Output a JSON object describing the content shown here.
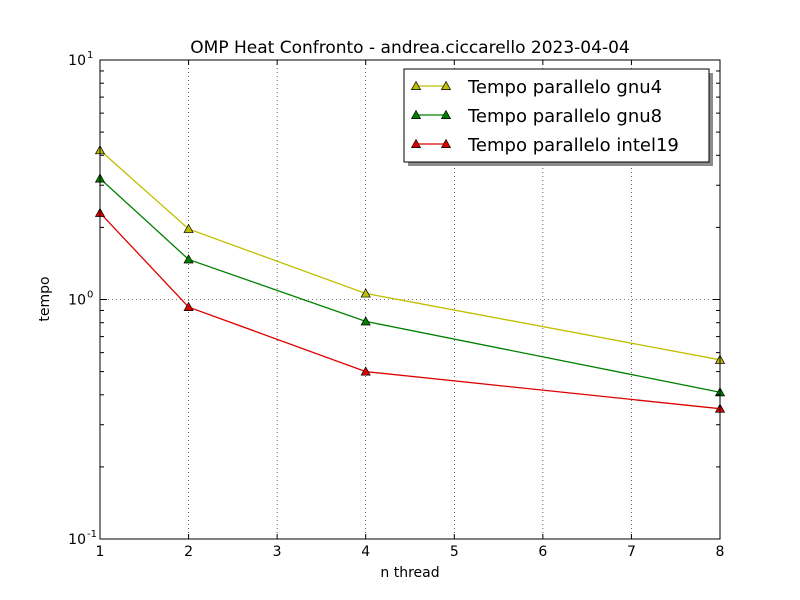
{
  "chart_data": {
    "type": "line",
    "title": "OMP Heat Confronto -  andrea.ciccarello  2023-04-04",
    "xlabel": "n thread",
    "ylabel": "tempo",
    "xlim": [
      1,
      8
    ],
    "ylim": [
      0.1,
      10
    ],
    "yscale": "log",
    "grid": true,
    "legend_position": "top-right",
    "x_ticks": [
      1,
      2,
      3,
      4,
      5,
      6,
      7,
      8
    ],
    "y_ticks": [
      {
        "value": 0.1,
        "base": "10",
        "exp": "-1"
      },
      {
        "value": 1,
        "base": "10",
        "exp": "0"
      },
      {
        "value": 10,
        "base": "10",
        "exp": "1"
      }
    ],
    "series": [
      {
        "name": "Tempo parallelo gnu4",
        "color": "#bfbf00",
        "x": [
          1,
          2,
          4,
          8
        ],
        "y": [
          4.2,
          1.97,
          1.06,
          0.56
        ]
      },
      {
        "name": "Tempo parallelo gnu8",
        "color": "#008000",
        "x": [
          1,
          2,
          4,
          8
        ],
        "y": [
          3.2,
          1.47,
          0.81,
          0.41
        ]
      },
      {
        "name": "Tempo parallelo intel19",
        "color": "#dd0000",
        "x": [
          1,
          2,
          4,
          8
        ],
        "y": [
          2.3,
          0.93,
          0.5,
          0.35
        ]
      }
    ]
  }
}
